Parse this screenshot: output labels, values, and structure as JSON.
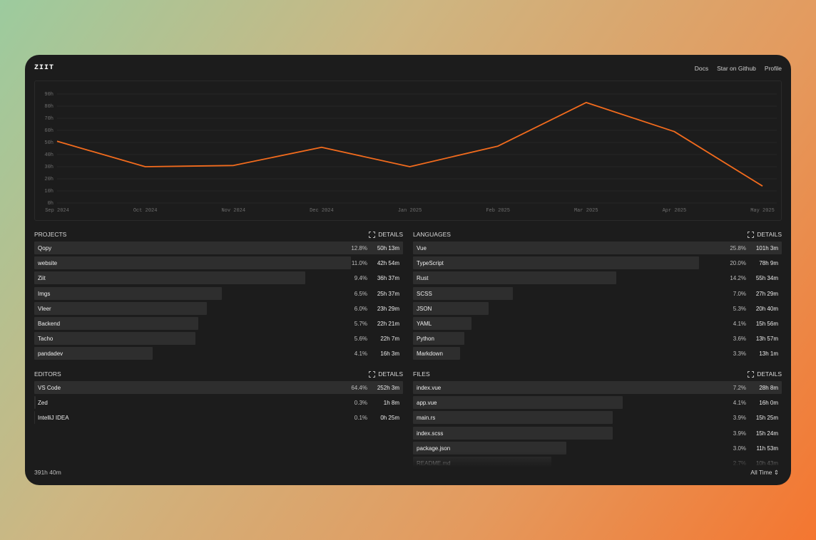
{
  "header": {
    "logo": "ZIIT",
    "nav": [
      "Docs",
      "Star on Github",
      "Profile"
    ]
  },
  "chart_data": {
    "type": "line",
    "categories": [
      "Sep 2024",
      "Oct 2024",
      "Nov 2024",
      "Dec 2024",
      "Jan 2025",
      "Feb 2025",
      "Mar 2025",
      "Apr 2025",
      "May 2025"
    ],
    "series": [
      {
        "color": "#f26b1d",
        "values": [
          51,
          30,
          31,
          46,
          30,
          47,
          83,
          59,
          14
        ]
      }
    ],
    "ylim": [
      0,
      90
    ],
    "yticks": [
      {
        "value": 0,
        "label": "0h"
      },
      {
        "value": 10,
        "label": "10h"
      },
      {
        "value": 20,
        "label": "20h"
      },
      {
        "value": 30,
        "label": "30h"
      },
      {
        "value": 40,
        "label": "40h"
      },
      {
        "value": 50,
        "label": "50h"
      },
      {
        "value": 60,
        "label": "60h"
      },
      {
        "value": 70,
        "label": "70h"
      },
      {
        "value": 80,
        "label": "80h"
      },
      {
        "value": 90,
        "label": "90h"
      }
    ],
    "grid": true
  },
  "panels": [
    {
      "title": "PROJECTS",
      "action": "DETAILS",
      "items": [
        "Qopy",
        "website",
        "Ziit",
        "Imgs",
        "Vleer",
        "Backend",
        "Tacho",
        "pandadev"
      ],
      "values": [
        12.8,
        11.0,
        9.4,
        6.5,
        6.0,
        5.7,
        5.6,
        4.1
      ],
      "value_labels": [
        "12.8%",
        "11.0%",
        "9.4%",
        "6.5%",
        "6.0%",
        "5.7%",
        "5.6%",
        "4.1%"
      ],
      "times": [
        "50h 13m",
        "42h 54m",
        "36h 37m",
        "25h 37m",
        "23h 29m",
        "22h 21m",
        "22h 7m",
        "16h 3m"
      ]
    },
    {
      "title": "LANGUAGES",
      "action": "DETAILS",
      "items": [
        "Vue",
        "TypeScript",
        "Rust",
        "SCSS",
        "JSON",
        "YAML",
        "Python",
        "Markdown"
      ],
      "values": [
        25.8,
        20.0,
        14.2,
        7.0,
        5.3,
        4.1,
        3.6,
        3.3
      ],
      "value_labels": [
        "25.8%",
        "20.0%",
        "14.2%",
        "7.0%",
        "5.3%",
        "4.1%",
        "3.6%",
        "3.3%"
      ],
      "times": [
        "101h 3m",
        "78h 9m",
        "55h 34m",
        "27h 29m",
        "20h 40m",
        "15h 56m",
        "13h 57m",
        "13h 1m"
      ]
    },
    {
      "title": "EDITORS",
      "action": "DETAILS",
      "items": [
        "VS Code",
        "Zed",
        "IntelliJ IDEA"
      ],
      "values": [
        64.4,
        0.3,
        0.1
      ],
      "value_labels": [
        "64.4%",
        "0.3%",
        "0.1%"
      ],
      "times": [
        "252h 3m",
        "1h 8m",
        "0h 25m"
      ]
    },
    {
      "title": "FILES",
      "action": "DETAILS",
      "items": [
        "index.vue",
        "app.vue",
        "main.rs",
        "index.scss",
        "package.json",
        "README.md"
      ],
      "values": [
        7.2,
        4.1,
        3.9,
        3.9,
        3.0,
        2.7
      ],
      "value_labels": [
        "7.2%",
        "4.1%",
        "3.9%",
        "3.9%",
        "3.0%",
        "2.7%"
      ],
      "times": [
        "28h 8m",
        "16h 0m",
        "15h 25m",
        "15h 24m",
        "11h 53m",
        "10h 43m"
      ]
    }
  ],
  "footer": {
    "total": "391h 40m",
    "range": "All Time"
  }
}
